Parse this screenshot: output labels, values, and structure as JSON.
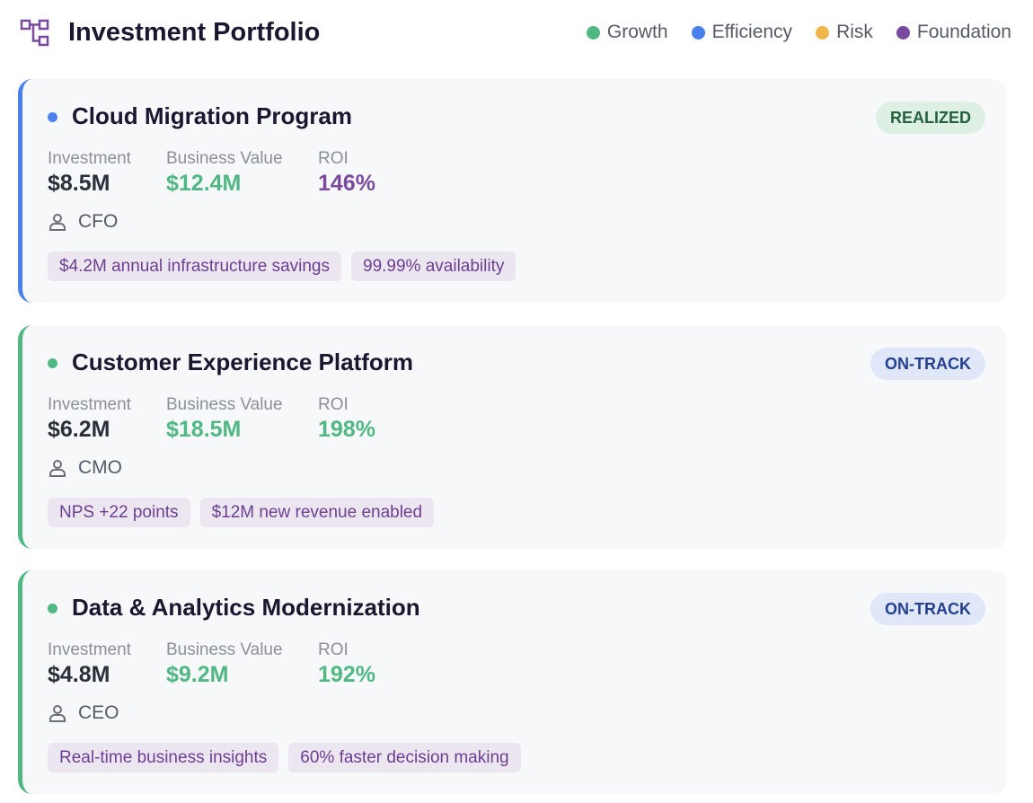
{
  "header": {
    "title": "Investment Portfolio"
  },
  "legend": [
    {
      "label": "Growth",
      "color": "#4fb883"
    },
    {
      "label": "Efficiency",
      "color": "#4a80ec"
    },
    {
      "label": "Risk",
      "color": "#f0b64b"
    },
    {
      "label": "Foundation",
      "color": "#7b4a9e"
    }
  ],
  "cards": [
    {
      "title": "Cloud Migration Program",
      "color": "#4a80ec",
      "status": {
        "text": "REALIZED",
        "bg": "#def0e4",
        "color": "#24603b"
      },
      "metrics": [
        {
          "label": "Investment",
          "value": "$8.5M",
          "color": "#2b2f3a"
        },
        {
          "label": "Business Value",
          "value": "$12.4M",
          "color": "#4fb883"
        },
        {
          "label": "ROI",
          "value": "146%",
          "color": "#7b4a9e"
        }
      ],
      "owner": "CFO",
      "tags": [
        "$4.2M annual infrastructure savings",
        "99.99% availability"
      ]
    },
    {
      "title": "Customer Experience Platform",
      "color": "#4fb883",
      "status": {
        "text": "ON-TRACK",
        "bg": "#dfe7f8",
        "color": "#243f8f"
      },
      "metrics": [
        {
          "label": "Investment",
          "value": "$6.2M",
          "color": "#2b2f3a"
        },
        {
          "label": "Business Value",
          "value": "$18.5M",
          "color": "#4fb883"
        },
        {
          "label": "ROI",
          "value": "198%",
          "color": "#4fb883"
        }
      ],
      "owner": "CMO",
      "tags": [
        "NPS +22 points",
        "$12M new revenue enabled"
      ]
    },
    {
      "title": "Data & Analytics Modernization",
      "color": "#4fb883",
      "status": {
        "text": "ON-TRACK",
        "bg": "#dfe7f8",
        "color": "#243f8f"
      },
      "metrics": [
        {
          "label": "Investment",
          "value": "$4.8M",
          "color": "#2b2f3a"
        },
        {
          "label": "Business Value",
          "value": "$9.2M",
          "color": "#4fb883"
        },
        {
          "label": "ROI",
          "value": "192%",
          "color": "#4fb883"
        }
      ],
      "owner": "CEO",
      "tags": [
        "Real-time business insights",
        "60% faster decision making"
      ]
    }
  ]
}
